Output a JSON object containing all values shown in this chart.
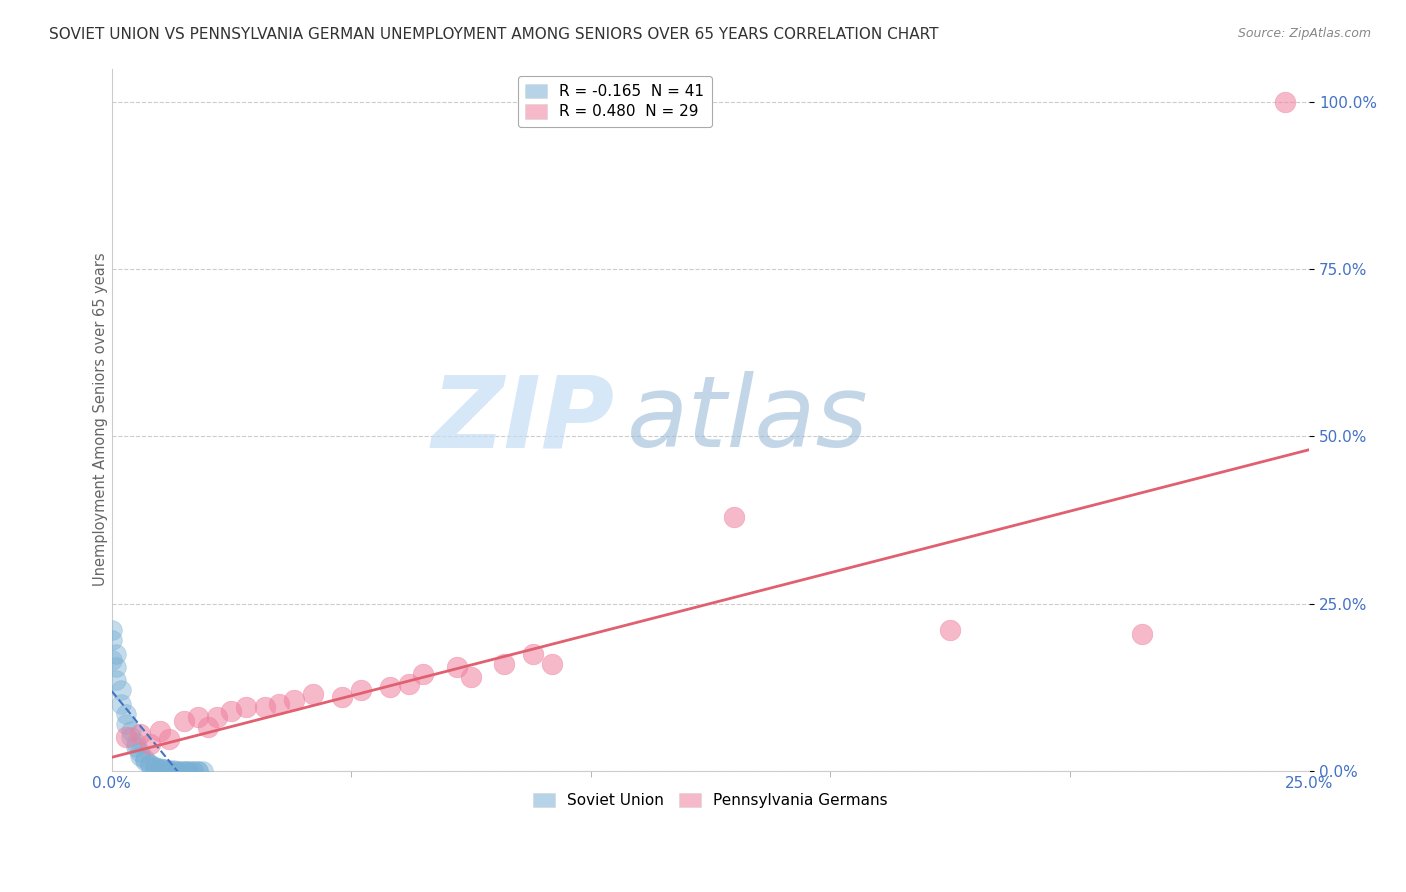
{
  "title": "SOVIET UNION VS PENNSYLVANIA GERMAN UNEMPLOYMENT AMONG SENIORS OVER 65 YEARS CORRELATION CHART",
  "source": "Source: ZipAtlas.com",
  "ylabel": "Unemployment Among Seniors over 65 years",
  "background_color": "#ffffff",
  "grid_color": "#cccccc",
  "soviet_union_color": "#7ab0d4",
  "pennsylvania_color": "#f080a0",
  "soviet_union_line_color": "#4472c4",
  "pennsylvania_line_color": "#e06070",
  "tick_label_color": "#4472c4",
  "title_color": "#333333",
  "ylabel_color": "#666666",
  "source_color": "#888888",
  "watermark_zip_color": "#c8ddf4",
  "watermark_atlas_color": "#a0c0e0",
  "xlim": [
    0,
    0.25
  ],
  "ylim": [
    0,
    1.05
  ],
  "yticks": [
    0.0,
    0.25,
    0.5,
    0.75,
    1.0
  ],
  "xticks": [
    0.0,
    0.25
  ],
  "legend_label_su": "R = -0.165  N = 41",
  "legend_label_pa": "R = 0.480  N = 29",
  "legend_label_su_bottom": "Soviet Union",
  "legend_label_pa_bottom": "Pennsylvania Germans",
  "soviet_union_points": [
    [
      0.0,
      0.21
    ],
    [
      0.0,
      0.195
    ],
    [
      0.001,
      0.175
    ],
    [
      0.0,
      0.165
    ],
    [
      0.001,
      0.155
    ],
    [
      0.001,
      0.135
    ],
    [
      0.002,
      0.12
    ],
    [
      0.002,
      0.1
    ],
    [
      0.003,
      0.085
    ],
    [
      0.003,
      0.07
    ],
    [
      0.004,
      0.06
    ],
    [
      0.004,
      0.05
    ],
    [
      0.005,
      0.042
    ],
    [
      0.005,
      0.035
    ],
    [
      0.006,
      0.028
    ],
    [
      0.006,
      0.022
    ],
    [
      0.007,
      0.018
    ],
    [
      0.007,
      0.014
    ],
    [
      0.008,
      0.01
    ],
    [
      0.008,
      0.008
    ],
    [
      0.009,
      0.006
    ],
    [
      0.009,
      0.005
    ],
    [
      0.01,
      0.004
    ],
    [
      0.01,
      0.003
    ],
    [
      0.011,
      0.002
    ],
    [
      0.011,
      0.002
    ],
    [
      0.012,
      0.001
    ],
    [
      0.012,
      0.001
    ],
    [
      0.013,
      0.001
    ],
    [
      0.013,
      0.0
    ],
    [
      0.014,
      0.0
    ],
    [
      0.014,
      0.0
    ],
    [
      0.015,
      0.0
    ],
    [
      0.015,
      0.0
    ],
    [
      0.016,
      0.0
    ],
    [
      0.016,
      0.0
    ],
    [
      0.017,
      0.0
    ],
    [
      0.017,
      0.0
    ],
    [
      0.018,
      0.0
    ],
    [
      0.018,
      0.0
    ],
    [
      0.019,
      0.0
    ]
  ],
  "pennsylvania_points": [
    [
      0.003,
      0.05
    ],
    [
      0.006,
      0.055
    ],
    [
      0.008,
      0.04
    ],
    [
      0.01,
      0.06
    ],
    [
      0.012,
      0.048
    ],
    [
      0.015,
      0.075
    ],
    [
      0.018,
      0.08
    ],
    [
      0.02,
      0.065
    ],
    [
      0.022,
      0.08
    ],
    [
      0.025,
      0.09
    ],
    [
      0.028,
      0.095
    ],
    [
      0.032,
      0.095
    ],
    [
      0.035,
      0.1
    ],
    [
      0.038,
      0.105
    ],
    [
      0.042,
      0.115
    ],
    [
      0.048,
      0.11
    ],
    [
      0.052,
      0.12
    ],
    [
      0.058,
      0.125
    ],
    [
      0.062,
      0.13
    ],
    [
      0.065,
      0.145
    ],
    [
      0.072,
      0.155
    ],
    [
      0.075,
      0.14
    ],
    [
      0.082,
      0.16
    ],
    [
      0.088,
      0.175
    ],
    [
      0.092,
      0.16
    ],
    [
      0.13,
      0.38
    ],
    [
      0.175,
      0.21
    ],
    [
      0.215,
      0.205
    ],
    [
      0.245,
      1.0
    ]
  ]
}
